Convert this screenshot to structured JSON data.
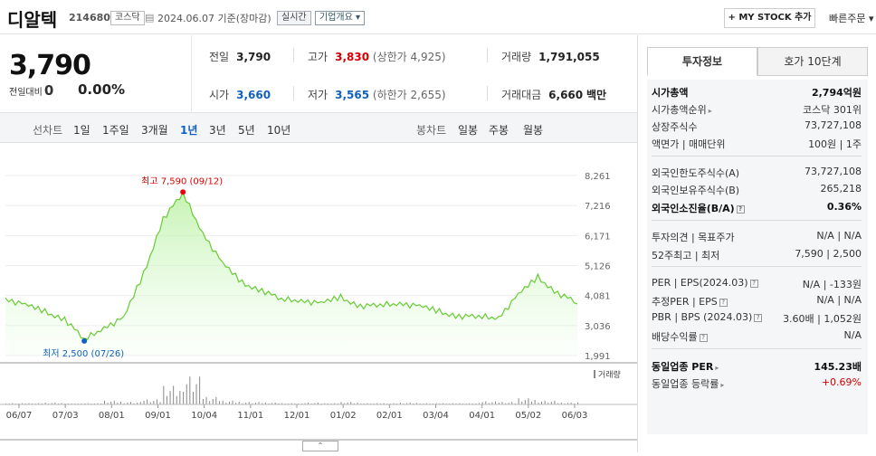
{
  "header": {
    "name": "디알텍",
    "code": "214680",
    "market": "코스닥",
    "date": "2024.06.07 기준(장마감)",
    "realtime": "실시간",
    "overview": "기업개요 ▾",
    "mystock": "+ MY STOCK 추가",
    "quick": "빠른주문 ▾"
  },
  "price": {
    "current": "3,790",
    "change_label": "전일대비",
    "change": "0",
    "change_pct": "0.00%"
  },
  "stats": {
    "prev_k": "전일",
    "prev_v": "3,790",
    "high_k": "고가",
    "high_v": "3,830",
    "upper": "(상한가 4,925)",
    "vol_k": "거래량",
    "vol_v": "1,791,055",
    "open_k": "시가",
    "open_v": "3,660",
    "low_k": "저가",
    "low_v": "3,565",
    "lower": "(하한가 2,655)",
    "amt_k": "거래대금",
    "amt_v": "6,660",
    "amt_unit": "백만"
  },
  "periods": {
    "line_label": "선차트",
    "items": [
      "1일",
      "1주일",
      "3개월",
      "1년",
      "3년",
      "5년",
      "10년"
    ],
    "active": 3,
    "candle_label": "봉차트",
    "candle": [
      "일봉",
      "주봉",
      "월봉"
    ]
  },
  "tabs": [
    "투자정보",
    "호가 10단계"
  ],
  "info": {
    "mcap": [
      "시가총액",
      "2,794억원"
    ],
    "rank": [
      "시가총액순위",
      "코스닥 301위"
    ],
    "shares": [
      "상장주식수",
      "73,727,108"
    ],
    "par": [
      "액면가 | 매매단위",
      "100원 | 1주"
    ],
    "fshares": [
      "외국인한도주식수(A)",
      "73,727,108"
    ],
    "fhold": [
      "외국인보유주식수(B)",
      "265,218"
    ],
    "fratio": [
      "외국인소진율(B/A)",
      "0.36%"
    ],
    "opinion": [
      "투자의견 | 목표주가",
      "N/A | N/A"
    ],
    "w52": [
      "52주최고 | 최저",
      "7,590 | 2,500"
    ],
    "per": [
      "PER | EPS(2024.03)",
      "N/A | -133원"
    ],
    "eper": [
      "추정PER | EPS",
      "N/A | N/A"
    ],
    "pbr": [
      "PBR | BPS (2024.03)",
      "3.60배 | 1,052원"
    ],
    "div": [
      "배당수익률",
      "N/A"
    ],
    "ind_per": [
      "동일업종 PER",
      "145.23배"
    ],
    "ind_chg": [
      "동일업종 등락률",
      "+0.69%"
    ]
  },
  "chart_data": {
    "type": "area",
    "x": [
      "06/07",
      "06/21",
      "07/03",
      "07/17",
      "07/26",
      "08/01",
      "08/15",
      "08/22",
      "09/01",
      "09/12",
      "09/20",
      "10/04",
      "10/18",
      "11/01",
      "11/15",
      "12/01",
      "12/15",
      "01/02",
      "01/16",
      "02/01",
      "02/15",
      "03/04",
      "03/18",
      "04/01",
      "04/15",
      "05/02",
      "05/16",
      "05/28",
      "06/03",
      "06/07"
    ],
    "y": [
      4000,
      3750,
      3500,
      3300,
      2500,
      3000,
      3300,
      4800,
      6800,
      7590,
      6300,
      5200,
      4500,
      4300,
      3900,
      3950,
      3800,
      4000,
      3750,
      3700,
      3850,
      3700,
      3500,
      3400,
      3300,
      3350,
      4100,
      4700,
      4200,
      3790
    ],
    "yticks": [
      "8,261",
      "7,216",
      "6,171",
      "5,126",
      "4,081",
      "3,036",
      "1,991"
    ],
    "xticks": [
      "06/07",
      "07/03",
      "08/01",
      "09/01",
      "10/04",
      "11/01",
      "12/01",
      "01/02",
      "02/01",
      "03/04",
      "04/01",
      "05/02",
      "06/03"
    ],
    "ylim": [
      1991,
      8261
    ],
    "max_label": "최고 7,590 (09/12)",
    "min_label": "최저 2,500 (07/26)",
    "vol_label": "거래량",
    "volume": [
      2,
      2,
      3,
      1,
      2,
      6,
      4,
      8,
      30,
      45,
      12,
      6,
      4,
      3,
      2,
      3,
      2,
      4,
      2,
      2,
      3,
      2,
      2,
      2,
      5,
      4,
      10,
      6,
      3,
      3
    ]
  }
}
